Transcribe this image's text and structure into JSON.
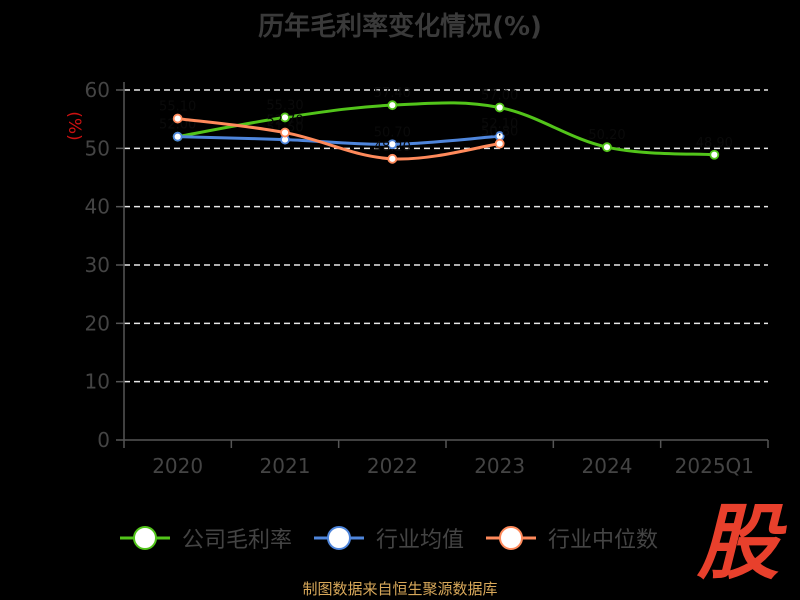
{
  "chart_data": {
    "type": "line",
    "title": "历年毛利率变化情况(%)",
    "ylabel": "(%)",
    "xlabel": "",
    "categories": [
      "2020",
      "2021",
      "2022",
      "2023",
      "2024",
      "2025Q1"
    ],
    "ylim": [
      0,
      60
    ],
    "yticks": [
      0,
      10,
      20,
      30,
      40,
      50,
      60
    ],
    "grid": true,
    "legend_position": "bottom",
    "series": [
      {
        "name": "公司毛利率",
        "color": "#52c41a",
        "values": [
          52.0,
          55.3,
          57.4,
          57.0,
          50.2,
          48.9
        ]
      },
      {
        "name": "行业均值",
        "color": "#4f86dc",
        "values": [
          52.0,
          51.5,
          50.7,
          52.1,
          null,
          null
        ]
      },
      {
        "name": "行业中位数",
        "color": "#ff8a5b",
        "values": [
          55.1,
          52.7,
          48.2,
          50.8,
          null,
          null
        ]
      }
    ]
  },
  "source_text": "制图数据来自恒生聚源数据库",
  "brand_mark": "股",
  "colors": {
    "ylabel": "#cc1111",
    "axis": "#555555",
    "grid": "#e8e8e8"
  }
}
